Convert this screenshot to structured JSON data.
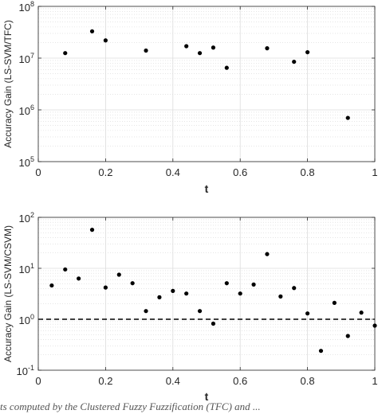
{
  "caption": "ts computed by the Clustered Fuzzy Fuzzification (TFC) and ... ",
  "chart_data": [
    {
      "type": "scatter",
      "title": "",
      "xlabel": "t",
      "ylabel": "Accuracy Gain (LS-SVM/TFC)",
      "xlim": [
        0,
        1
      ],
      "ylim": [
        100000,
        100000000
      ],
      "yscale": "log",
      "grid": true,
      "xticks": [
        0,
        0.2,
        0.4,
        0.6,
        0.8,
        1
      ],
      "xtick_labels": [
        "0",
        "0.2",
        "0.4",
        "0.6",
        "0.8",
        "1"
      ],
      "yticks": [
        100000,
        1000000,
        10000000,
        100000000
      ],
      "ytick_labels": [
        {
          "base": "10",
          "exp": "5"
        },
        {
          "base": "10",
          "exp": "6"
        },
        {
          "base": "10",
          "exp": "7"
        },
        {
          "base": "10",
          "exp": "8"
        }
      ],
      "marker_color": "#000000",
      "points": [
        {
          "x": 0.08,
          "y": 12500000
        },
        {
          "x": 0.16,
          "y": 33000000
        },
        {
          "x": 0.2,
          "y": 22000000
        },
        {
          "x": 0.32,
          "y": 14000000
        },
        {
          "x": 0.44,
          "y": 17000000
        },
        {
          "x": 0.48,
          "y": 12500000
        },
        {
          "x": 0.52,
          "y": 16000000
        },
        {
          "x": 0.56,
          "y": 6500000
        },
        {
          "x": 0.68,
          "y": 15500000
        },
        {
          "x": 0.76,
          "y": 8500000
        },
        {
          "x": 0.8,
          "y": 13000000
        },
        {
          "x": 0.92,
          "y": 700000
        }
      ]
    },
    {
      "type": "scatter",
      "title": "",
      "xlabel": "t",
      "ylabel": "Accuracy Gain (LS-SVM/CSVM)",
      "xlim": [
        0,
        1
      ],
      "ylim": [
        0.1,
        100
      ],
      "yscale": "log",
      "grid": true,
      "xticks": [
        0,
        0.2,
        0.4,
        0.6,
        0.8,
        1
      ],
      "xtick_labels": [
        "0",
        "0.2",
        "0.4",
        "0.6",
        "0.8",
        "1"
      ],
      "yticks": [
        0.1,
        1,
        10,
        100
      ],
      "ytick_labels": [
        {
          "base": "10",
          "exp": "-1"
        },
        {
          "base": "10",
          "exp": "0"
        },
        {
          "base": "10",
          "exp": "1"
        },
        {
          "base": "10",
          "exp": "2"
        }
      ],
      "reference_line": {
        "y": 1,
        "style": "dashed",
        "color": "#000000"
      },
      "marker_color": "#000000",
      "points": [
        {
          "x": 0.04,
          "y": 4.6
        },
        {
          "x": 0.08,
          "y": 9.5
        },
        {
          "x": 0.12,
          "y": 6.3
        },
        {
          "x": 0.16,
          "y": 57
        },
        {
          "x": 0.2,
          "y": 4.2
        },
        {
          "x": 0.24,
          "y": 7.5
        },
        {
          "x": 0.28,
          "y": 5.1
        },
        {
          "x": 0.32,
          "y": 1.45
        },
        {
          "x": 0.36,
          "y": 2.7
        },
        {
          "x": 0.4,
          "y": 3.6
        },
        {
          "x": 0.44,
          "y": 3.2
        },
        {
          "x": 0.48,
          "y": 1.45
        },
        {
          "x": 0.52,
          "y": 0.82
        },
        {
          "x": 0.56,
          "y": 5.1
        },
        {
          "x": 0.6,
          "y": 3.2
        },
        {
          "x": 0.64,
          "y": 4.8
        },
        {
          "x": 0.68,
          "y": 19
        },
        {
          "x": 0.72,
          "y": 2.8
        },
        {
          "x": 0.76,
          "y": 4.1
        },
        {
          "x": 0.8,
          "y": 1.3
        },
        {
          "x": 0.84,
          "y": 0.24
        },
        {
          "x": 0.88,
          "y": 2.1
        },
        {
          "x": 0.92,
          "y": 0.47
        },
        {
          "x": 0.96,
          "y": 1.35
        },
        {
          "x": 1.0,
          "y": 0.75
        }
      ]
    }
  ]
}
